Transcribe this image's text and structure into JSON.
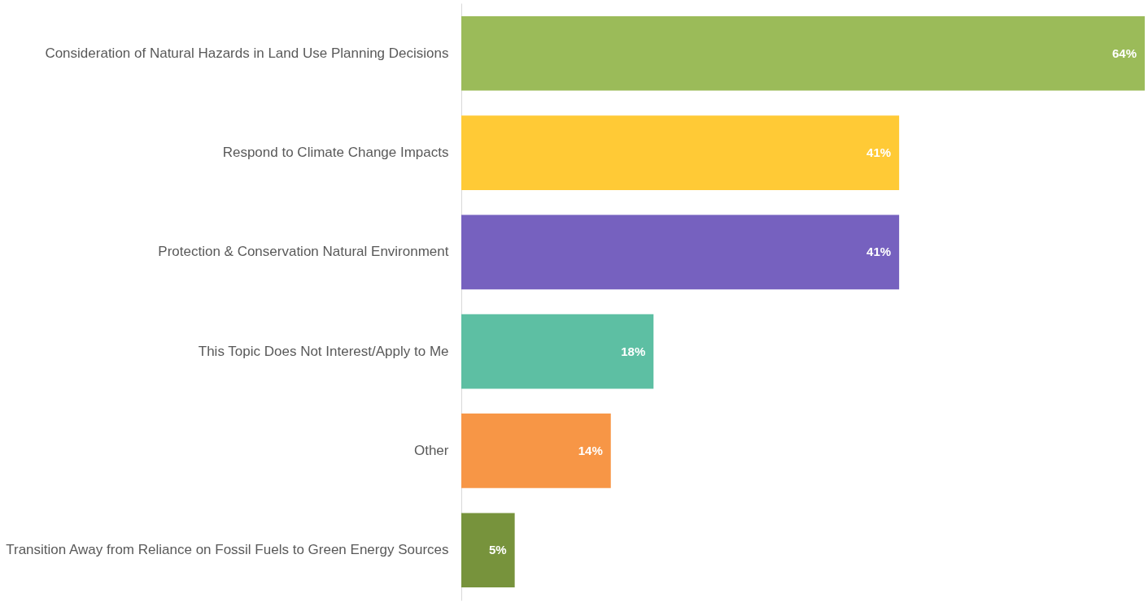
{
  "chart_data": {
    "type": "bar",
    "orientation": "horizontal",
    "categories": [
      "Consideration of Natural Hazards in Land Use Planning Decisions",
      "Respond to Climate Change Impacts",
      "Protection & Conservation Natural Environment ",
      "This Topic Does Not Interest/Apply to Me",
      "Other",
      "Transition Away from Reliance on Fossil Fuels to Green Energy Sources"
    ],
    "values": [
      64,
      41,
      41,
      18,
      14,
      5
    ],
    "value_labels": [
      "64%",
      "41%",
      "41%",
      "18%",
      "14%",
      "5%"
    ],
    "colors": [
      "#9bbb59",
      "#ffca36",
      "#7661bf",
      "#5dbfa3",
      "#f79646",
      "#77933c"
    ]
  }
}
